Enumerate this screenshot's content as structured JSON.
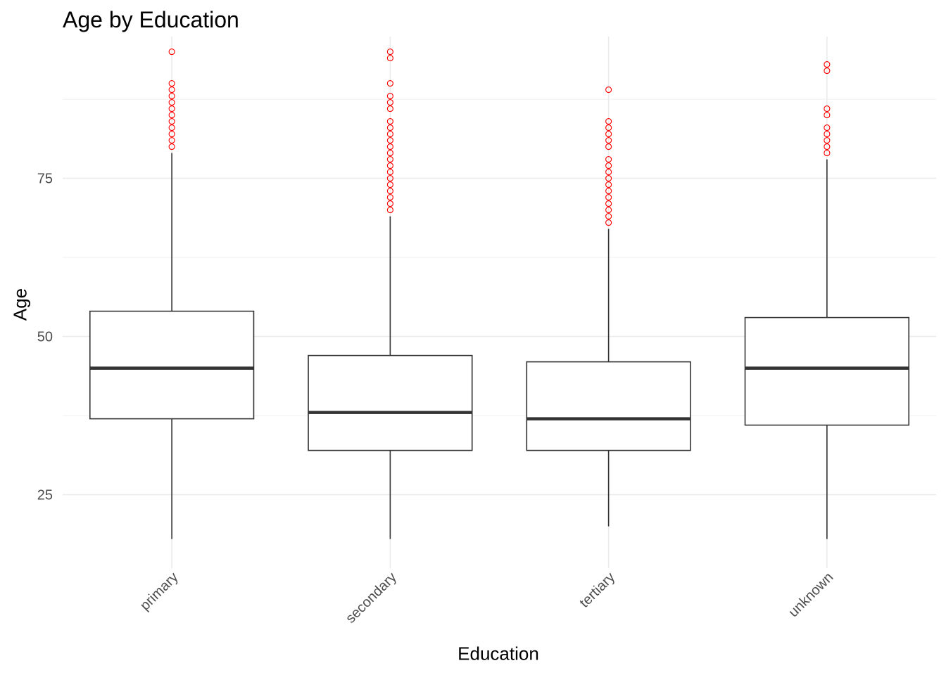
{
  "chart_data": {
    "type": "box",
    "title": "Age by Education",
    "xlabel": "Education",
    "ylabel": "Age",
    "categories": [
      "primary",
      "secondary",
      "tertiary",
      "unknown"
    ],
    "ylim": [
      13.4,
      97.4
    ],
    "y_ticks": [
      25,
      50,
      75
    ],
    "grid": true,
    "boxes": [
      {
        "category": "primary",
        "whisker_low": 18,
        "q1": 37,
        "median": 45,
        "q3": 54,
        "whisker_high": 79,
        "outliers": [
          80,
          81,
          82,
          83,
          84,
          85,
          86,
          87,
          88,
          89,
          90,
          95
        ]
      },
      {
        "category": "secondary",
        "whisker_low": 18,
        "q1": 32,
        "median": 38,
        "q3": 47,
        "whisker_high": 69,
        "outliers": [
          70,
          71,
          72,
          73,
          74,
          75,
          76,
          77,
          78,
          79,
          80,
          81,
          82,
          83,
          84,
          86,
          87,
          88,
          90,
          94,
          95
        ]
      },
      {
        "category": "tertiary",
        "whisker_low": 20,
        "q1": 32,
        "median": 37,
        "q3": 46,
        "whisker_high": 67,
        "outliers": [
          68,
          69,
          70,
          71,
          72,
          73,
          74,
          75,
          76,
          77,
          78,
          80,
          81,
          82,
          83,
          84,
          89
        ]
      },
      {
        "category": "unknown",
        "whisker_low": 18,
        "q1": 36,
        "median": 45,
        "q3": 53,
        "whisker_high": 78,
        "outliers": [
          79,
          80,
          81,
          82,
          83,
          85,
          86,
          92,
          93
        ]
      }
    ],
    "colors": {
      "box_line": "#333333",
      "outlier": "#ff0000",
      "grid": "#ebebeb",
      "tick_text": "#4d4d4d"
    }
  }
}
